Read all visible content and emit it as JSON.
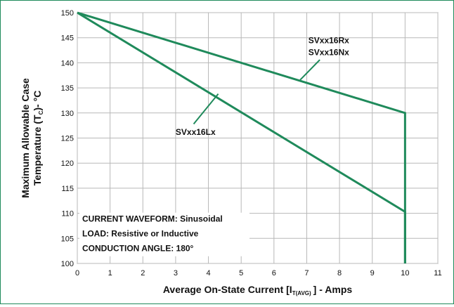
{
  "chart_data": {
    "type": "line",
    "title": "",
    "xlabel": {
      "main": "Average On-State Current [I",
      "sub": "T(AVG)",
      "tail": "] - Amps"
    },
    "ylabel": {
      "line1": "Maximum Allowable Case",
      "line2_main": "Temperature (T",
      "line2_sub": "C",
      "line2_tail": ")- °C"
    },
    "xlim": [
      0,
      11
    ],
    "ylim": [
      100,
      150
    ],
    "xticks": [
      0,
      1,
      2,
      3,
      4,
      5,
      6,
      7,
      8,
      9,
      10,
      11
    ],
    "yticks": [
      100,
      105,
      110,
      115,
      120,
      125,
      130,
      135,
      140,
      145,
      150
    ],
    "grid": true,
    "line_color": "#1f8a5b",
    "series": [
      {
        "labels": [
          "SVxx16Rx",
          "SVxx16Nx"
        ],
        "points": [
          [
            0,
            150
          ],
          [
            10,
            130
          ],
          [
            10,
            100
          ]
        ]
      },
      {
        "labels": [
          "SVxx16Lx"
        ],
        "points": [
          [
            0,
            150
          ],
          [
            10,
            110.3
          ],
          [
            10,
            100
          ]
        ]
      }
    ],
    "annotations": [
      "CURRENT WAVEFORM: Sinusoidal",
      "LOAD: Resistive or Inductive",
      "CONDUCTION ANGLE: 180°"
    ]
  }
}
